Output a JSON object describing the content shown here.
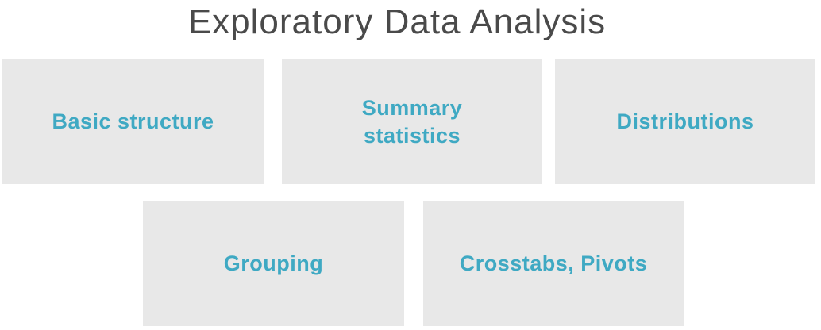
{
  "title": "Exploratory Data Analysis",
  "boxes": [
    {
      "label": "Basic structure"
    },
    {
      "label": "Summary\nstatistics"
    },
    {
      "label": "Distributions"
    },
    {
      "label": "Grouping"
    },
    {
      "label": "Crosstabs, Pivots"
    }
  ],
  "colors": {
    "title": "#4a4a4a",
    "box_background": "#e8e8e8",
    "label": "#3fa9c3"
  }
}
